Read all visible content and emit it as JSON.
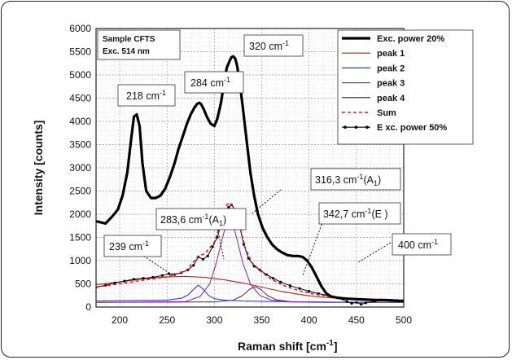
{
  "chart_data": {
    "type": "line",
    "xlabel": "Raman shift [cm",
    "xlabel_sup": "-1",
    "xlabel_close": "]",
    "ylabel": "Intensity [counts]",
    "xlim": [
      175,
      500
    ],
    "ylim": [
      0,
      6000
    ],
    "xticks": [
      200,
      250,
      300,
      350,
      400,
      450,
      500
    ],
    "yticks": [
      0,
      500,
      1000,
      1500,
      2000,
      2500,
      3000,
      3500,
      4000,
      4500,
      5000,
      5500,
      6000
    ],
    "grid": true,
    "legend_position": "top-right",
    "info_box": [
      "Sample CFTS",
      "Exc. 514 nm"
    ],
    "colors": {
      "exc20": "#000000",
      "peak1": "#b22222",
      "peak2": "#2c3fd1",
      "peak3": "#9b2bb5",
      "peak4": "#222222",
      "sum": "#e0221e",
      "exc50": "#000000"
    },
    "series": [
      {
        "name": "Exc. power 20%",
        "key": "exc20",
        "x": [
          175,
          185,
          192,
          198,
          203,
          208,
          212,
          215,
          218,
          221,
          224,
          228,
          233,
          238,
          243,
          248,
          253,
          258,
          262,
          267,
          271,
          275,
          279,
          282,
          284,
          286,
          289,
          292,
          296,
          300,
          303,
          307,
          310,
          313,
          316,
          318,
          320,
          322,
          324,
          327,
          330,
          334,
          338,
          342,
          346,
          351,
          356,
          361,
          366,
          371,
          377,
          383,
          388,
          393,
          398,
          403,
          408,
          413,
          418,
          423,
          430,
          440,
          450,
          460,
          470,
          480,
          490,
          500
        ],
        "y": [
          1850,
          1800,
          1950,
          2100,
          2400,
          2900,
          3600,
          4100,
          4150,
          3900,
          3100,
          2500,
          2350,
          2350,
          2400,
          2550,
          2800,
          3100,
          3400,
          3700,
          3950,
          4150,
          4300,
          4380,
          4400,
          4370,
          4250,
          4100,
          3950,
          3900,
          4050,
          4400,
          4800,
          5150,
          5300,
          5380,
          5400,
          5350,
          5200,
          4800,
          4300,
          3600,
          2900,
          2400,
          2000,
          1700,
          1500,
          1350,
          1250,
          1180,
          1120,
          1100,
          1100,
          1080,
          1000,
          850,
          650,
          450,
          300,
          230,
          200,
          180,
          170,
          160,
          150,
          150,
          140,
          130
        ]
      },
      {
        "name": "peak 1",
        "key": "peak1",
        "x": [
          175,
          200,
          225,
          250,
          270,
          290,
          310,
          330,
          350,
          370,
          390,
          410,
          430,
          450,
          475,
          500
        ],
        "y": [
          480,
          540,
          610,
          650,
          660,
          640,
          590,
          520,
          430,
          340,
          270,
          220,
          190,
          170,
          155,
          145
        ]
      },
      {
        "name": "peak 2",
        "key": "peak2",
        "x": [
          175,
          250,
          265,
          272,
          278,
          283,
          288,
          294,
          300,
          310,
          330,
          360,
          400,
          450,
          500
        ],
        "y": [
          130,
          150,
          190,
          260,
          380,
          470,
          390,
          250,
          180,
          150,
          130,
          120,
          110,
          105,
          100
        ]
      },
      {
        "name": "peak 3",
        "key": "peak3",
        "x": [
          175,
          270,
          285,
          295,
          302,
          308,
          312,
          316,
          320,
          324,
          330,
          338,
          348,
          360,
          380,
          420,
          500
        ],
        "y": [
          100,
          120,
          230,
          500,
          950,
          1450,
          1750,
          1830,
          1760,
          1450,
          950,
          500,
          250,
          150,
          110,
          100,
          100
        ]
      },
      {
        "name": "peak 4",
        "key": "peak4",
        "x": [
          175,
          300,
          320,
          330,
          337,
          343,
          349,
          356,
          365,
          380,
          420,
          500
        ],
        "y": [
          100,
          110,
          150,
          250,
          380,
          440,
          380,
          250,
          160,
          120,
          105,
          100
        ]
      },
      {
        "name": "Sum",
        "key": "sum",
        "x": [
          175,
          200,
          225,
          250,
          270,
          283,
          290,
          300,
          308,
          313,
          316,
          320,
          326,
          333,
          340,
          350,
          360,
          375,
          390,
          405,
          420,
          440,
          460,
          480,
          500
        ],
        "y": [
          430,
          500,
          580,
          650,
          780,
          1100,
          1150,
          1400,
          1900,
          2200,
          2250,
          2150,
          1800,
          1250,
          950,
          750,
          600,
          450,
          350,
          280,
          230,
          190,
          170,
          160,
          150
        ]
      },
      {
        "name": "E xc. power 50%",
        "key": "exc50",
        "x": [
          175,
          185,
          195,
          205,
          215,
          225,
          235,
          245,
          252,
          258,
          265,
          272,
          278,
          283,
          288,
          293,
          298,
          303,
          308,
          312,
          315,
          318,
          322,
          326,
          331,
          336,
          342,
          348,
          355,
          362,
          370,
          380,
          390,
          400,
          410,
          420,
          430,
          440,
          445,
          450,
          455,
          460,
          470,
          480,
          490,
          500
        ],
        "y": [
          430,
          470,
          520,
          560,
          600,
          620,
          640,
          680,
          720,
          700,
          740,
          800,
          900,
          1080,
          1030,
          1100,
          1300,
          1500,
          1850,
          2050,
          2150,
          2200,
          2100,
          1800,
          1350,
          1050,
          880,
          800,
          700,
          620,
          540,
          460,
          400,
          340,
          290,
          250,
          200,
          120,
          80,
          100,
          60,
          90,
          130,
          150,
          140,
          130
        ]
      }
    ],
    "annotations": [
      {
        "main": "218 cm",
        "sup": "-1",
        "tail": ""
      },
      {
        "main": "284 cm",
        "sup": "-1",
        "tail": ""
      },
      {
        "main": "320 cm",
        "sup": "-1",
        "tail": ""
      },
      {
        "main": "316,3 cm",
        "sup": "-1",
        "tail": "(A",
        "sub": "1",
        "close": ")"
      },
      {
        "main": "283,6 cm",
        "sup": "-1",
        "tail": "(A",
        "sub": "1",
        "close": ")"
      },
      {
        "main": "342,7 cm",
        "sup": "-1",
        "tail": "(E )"
      },
      {
        "main": "239 cm",
        "sup": "-1",
        "tail": ""
      },
      {
        "main": "400 cm",
        "sup": "-1",
        "tail": ""
      }
    ]
  }
}
